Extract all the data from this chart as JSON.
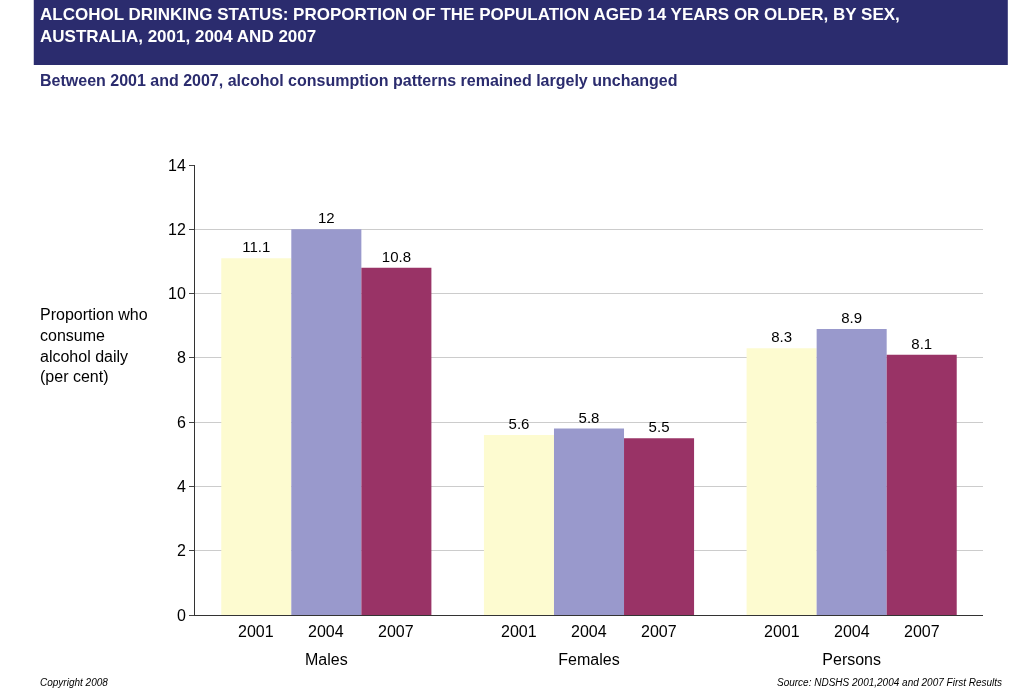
{
  "chart_data": {
    "type": "bar",
    "title": "ALCOHOL DRINKING STATUS: PROPORTION OF THE POPULATION AGED 14 YEARS OR OLDER, BY SEX,\nAUSTRALIA, 2001, 2004 AND 2007",
    "subtitle": "Between 2001 and 2007, alcohol consumption patterns remained largely unchanged",
    "ylabel": "Proportion who\nconsume\nalcohol daily\n(per cent)",
    "categories": [
      "Males",
      "Females",
      "Persons"
    ],
    "series": [
      {
        "name": "2001",
        "color": "#fdfbd0",
        "values": [
          11.1,
          5.6,
          8.3
        ]
      },
      {
        "name": "2004",
        "color": "#9999cc",
        "values": [
          12,
          5.8,
          8.9
        ]
      },
      {
        "name": "2007",
        "color": "#993366",
        "values": [
          10.8,
          5.5,
          8.1
        ]
      }
    ],
    "ylim": [
      0,
      14
    ],
    "yticks": [
      0,
      2,
      4,
      6,
      8,
      10,
      12,
      14
    ],
    "grid": "y",
    "data_labels": true,
    "legend": false,
    "annotations": [
      "Copyright 2008",
      "Source: NDSHS 2001,2004 and 2007 First Results"
    ]
  }
}
